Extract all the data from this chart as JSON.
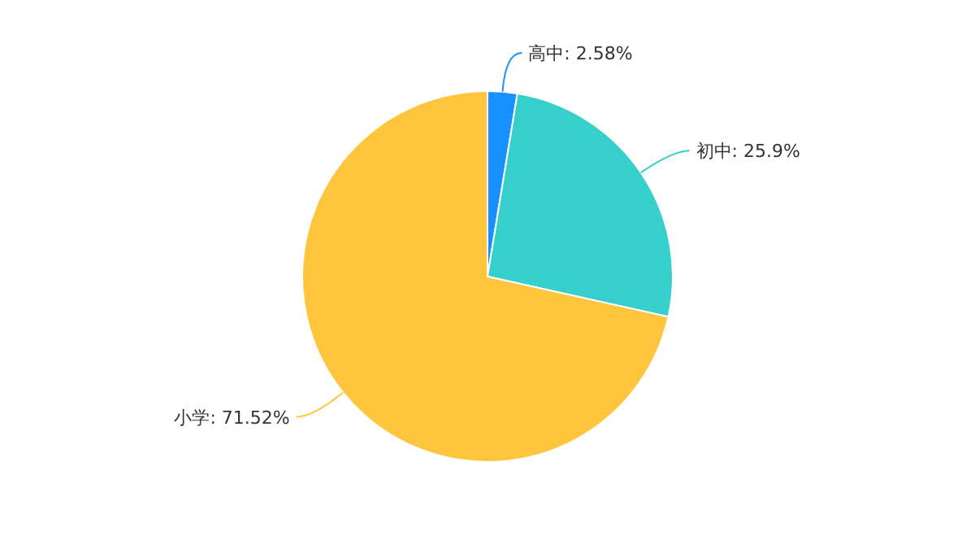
{
  "chart_data": {
    "type": "pie",
    "categories": [
      "高中",
      "初中",
      "小学"
    ],
    "values": [
      2.58,
      25.9,
      71.52
    ],
    "colors": [
      "#1890ff",
      "#36cfcb",
      "#ffc53d"
    ],
    "value_labels": [
      "2.58%",
      "25.9%",
      "71.52%"
    ]
  }
}
